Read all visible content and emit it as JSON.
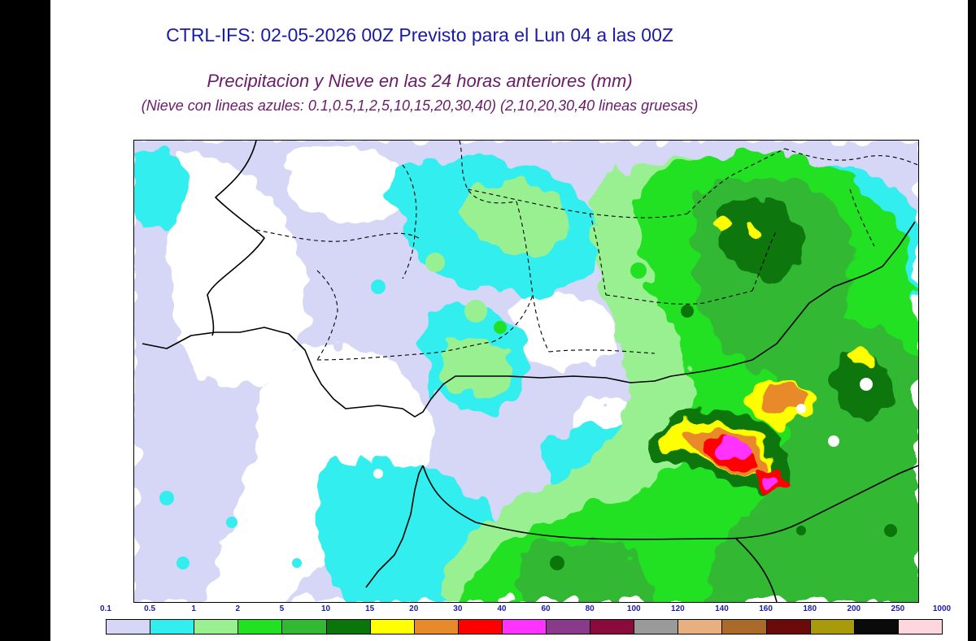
{
  "header": {
    "title": "CTRL-IFS: 02-05-2026 00Z Previsto para el Lun 04 a las 00Z",
    "subtitle": "Precipitacion y Nieve en las 24 horas anteriores (mm)",
    "note": "(Nieve con lineas azules: 0.1,0.5,1,2,5,10,15,20,30,40)  (2,10,20,30,40 lineas gruesas)"
  },
  "legend": {
    "ticks": [
      "0.1",
      "0.5",
      "1",
      "2",
      "5",
      "10",
      "15",
      "20",
      "30",
      "40",
      "60",
      "80",
      "100",
      "120",
      "140",
      "160",
      "180",
      "200",
      "250",
      "1000"
    ],
    "colors": [
      "#d6d6f6",
      "#33eeee",
      "#99f090",
      "#22e022",
      "#32b832",
      "#0a760a",
      "#ffff00",
      "#e88a2a",
      "#ff0000",
      "#ff33ff",
      "#8a3a8a",
      "#8a0a3a",
      "#9a9a9a",
      "#e8b080",
      "#aa6a2a",
      "#6a0a0a",
      "#a89a0a",
      "#0a0a0a",
      "#ffd6e0"
    ]
  },
  "map": {
    "field_colors": {
      "lavender": "#d6d6f6",
      "cyan": "#33eeee",
      "light_green": "#99f090",
      "green": "#22e022",
      "mid_green": "#32b832",
      "dark_green": "#0a760a",
      "yellow": "#ffff00",
      "orange": "#e88a2a",
      "red": "#ff0000",
      "magenta": "#ff33ff"
    }
  }
}
